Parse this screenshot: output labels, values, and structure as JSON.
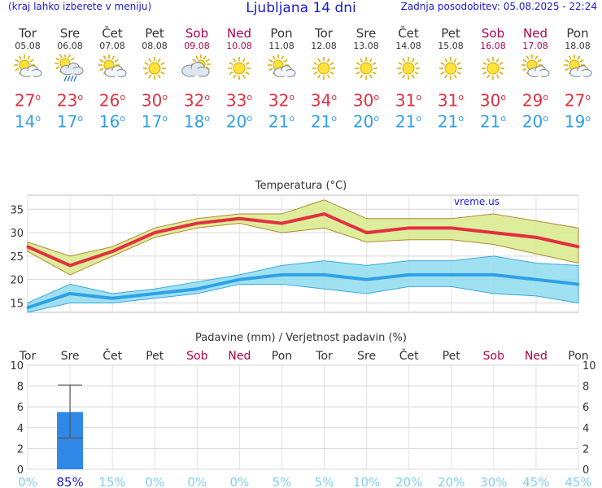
{
  "header": {
    "left_note": "(kraj lahko izberete v meniju)",
    "title": "Ljubljana 14 dni",
    "updated": "Zadnja posodobitev: 05.08.2025 - 22:24"
  },
  "colors": {
    "max": "#e23040",
    "min": "#2fa0e8",
    "weekend": "#b0004c",
    "precip_bar": "#2f88e8"
  },
  "days": [
    {
      "name": "Tor",
      "date": "05.08",
      "weekend": false,
      "icon": "sun-cloud-icon",
      "max": "27",
      "min": "14"
    },
    {
      "name": "Sre",
      "date": "06.08",
      "weekend": false,
      "icon": "sun-cloud-rain-icon",
      "max": "23",
      "min": "17"
    },
    {
      "name": "Čet",
      "date": "07.08",
      "weekend": false,
      "icon": "sun-cloud-icon",
      "max": "26",
      "min": "16"
    },
    {
      "name": "Pet",
      "date": "08.08",
      "weekend": false,
      "icon": "sun-icon",
      "max": "30",
      "min": "17"
    },
    {
      "name": "Sob",
      "date": "09.08",
      "weekend": true,
      "icon": "cloud-sun-icon",
      "max": "32",
      "min": "18"
    },
    {
      "name": "Ned",
      "date": "10.08",
      "weekend": true,
      "icon": "sun-icon",
      "max": "33",
      "min": "20"
    },
    {
      "name": "Pon",
      "date": "11.08",
      "weekend": false,
      "icon": "sun-cloud-icon",
      "max": "32",
      "min": "21"
    },
    {
      "name": "Tor",
      "date": "12.08",
      "weekend": false,
      "icon": "sun-icon",
      "max": "34",
      "min": "21"
    },
    {
      "name": "Sre",
      "date": "13.08",
      "weekend": false,
      "icon": "sun-icon",
      "max": "30",
      "min": "20"
    },
    {
      "name": "Čet",
      "date": "14.08",
      "weekend": false,
      "icon": "sun-icon",
      "max": "31",
      "min": "21"
    },
    {
      "name": "Pet",
      "date": "15.08",
      "weekend": false,
      "icon": "sun-icon",
      "max": "31",
      "min": "21"
    },
    {
      "name": "Sob",
      "date": "16.08",
      "weekend": true,
      "icon": "sun-icon",
      "max": "30",
      "min": "21"
    },
    {
      "name": "Ned",
      "date": "17.08",
      "weekend": true,
      "icon": "sun-cloud-icon",
      "max": "29",
      "min": "20"
    },
    {
      "name": "Pon",
      "date": "18.08",
      "weekend": false,
      "icon": "sun-cloud-icon",
      "max": "27",
      "min": "19"
    }
  ],
  "chart_data": [
    {
      "type": "line",
      "title": "Temperatura (°C)",
      "watermark": "vreme.us",
      "ylim": [
        13,
        38
      ],
      "yticks": [
        15,
        20,
        25,
        30,
        35
      ],
      "grid": true,
      "series": [
        {
          "name": "max",
          "values": [
            27,
            23,
            26,
            30,
            32,
            33,
            32,
            34,
            30,
            31,
            31,
            30,
            29,
            27
          ],
          "range_low": [
            26,
            21,
            25,
            29,
            31,
            32,
            30,
            31,
            28,
            28.5,
            28.5,
            27.5,
            25.5,
            23.5
          ],
          "range_high": [
            28,
            25,
            27,
            31,
            33,
            34,
            34,
            37,
            33,
            33,
            33,
            34,
            32.5,
            31
          ]
        },
        {
          "name": "min",
          "values": [
            14,
            17,
            16,
            17,
            18,
            20,
            21,
            21,
            20,
            21,
            21,
            21,
            20,
            19
          ],
          "range_low": [
            13,
            15,
            15,
            16,
            17,
            19,
            19,
            18,
            17,
            18.5,
            18.5,
            17,
            16.5,
            15
          ],
          "range_high": [
            15,
            19,
            17,
            18,
            19.5,
            21,
            23,
            24,
            23,
            24,
            24,
            25,
            23.5,
            23
          ]
        }
      ]
    },
    {
      "type": "bar",
      "title": "Padavine (mm) / Verjetnost padavin (%)",
      "ylim": [
        0,
        10
      ],
      "yticks": [
        0,
        2,
        4,
        6,
        8,
        10
      ],
      "categories": [
        "Tor",
        "Sre",
        "Čet",
        "Pet",
        "Sob",
        "Ned",
        "Pon",
        "Tor",
        "Sre",
        "Čet",
        "Pet",
        "Sob",
        "Ned",
        "Pon"
      ],
      "values": [
        0,
        5.5,
        0,
        0,
        0,
        0,
        0,
        0,
        0,
        0,
        0,
        0,
        0,
        0
      ],
      "error_low": [
        0,
        3,
        0,
        0,
        0,
        0,
        0,
        0,
        0,
        0,
        0,
        0,
        0,
        0
      ],
      "error_high": [
        0,
        8.1,
        0,
        0,
        0,
        0,
        0,
        0,
        0,
        0,
        0,
        0,
        0,
        0
      ],
      "probability": [
        "0%",
        "85%",
        "15%",
        "0%",
        "0%",
        "0%",
        "5%",
        "5%",
        "10%",
        "20%",
        "20%",
        "30%",
        "45%",
        "45%"
      ],
      "weekend": [
        false,
        false,
        false,
        false,
        true,
        true,
        false,
        false,
        false,
        false,
        false,
        true,
        true,
        false
      ]
    }
  ]
}
